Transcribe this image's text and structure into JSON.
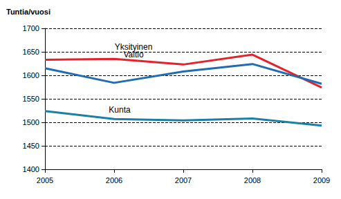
{
  "chart_data": {
    "type": "line",
    "y_label": "Tuntia/vuosi",
    "categories": [
      "2005",
      "2006",
      "2007",
      "2008",
      "2009"
    ],
    "series": [
      {
        "name": "Yksityinen",
        "color": "#e3222b",
        "values": [
          1633,
          1635,
          1623,
          1644,
          1574
        ]
      },
      {
        "name": "Valtio",
        "color": "#1f6cb3",
        "values": [
          1615,
          1584,
          1608,
          1624,
          1582
        ]
      },
      {
        "name": "Kunta",
        "color": "#1b7fa6",
        "values": [
          1524,
          1507,
          1504,
          1508,
          1493
        ]
      }
    ],
    "ylim": [
      1400,
      1700
    ],
    "yticks": [
      1400,
      1450,
      1500,
      1550,
      1600,
      1650,
      1700
    ],
    "grid": true,
    "line_style": "solid"
  }
}
